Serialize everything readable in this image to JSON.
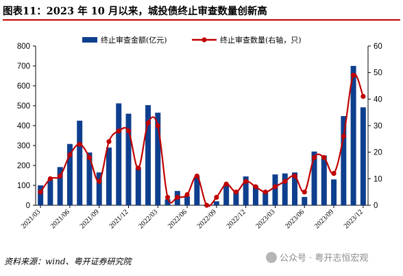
{
  "figure": {
    "title": "图表11：2023 年 10 月以来，城投债终止审查数量创新高",
    "source": "资料来源：wind、粤开证券研究院",
    "watermark": "公众号 · 粤开志恒宏观"
  },
  "colors": {
    "bar": "#0e3f8e",
    "line": "#c00000"
  },
  "chart_data": {
    "type": "bar",
    "title": "",
    "x_tick_labels": [
      "2021/03",
      "2021/06",
      "2021/09",
      "2021/12",
      "2022/03",
      "2022/06",
      "2022/09",
      "2022/12",
      "2023/03",
      "2023/06",
      "2023/09",
      "2023/12"
    ],
    "y_left_ticks": [
      "0",
      "100",
      "200",
      "300",
      "400",
      "500",
      "600",
      "700",
      "800"
    ],
    "y_right_ticks": [
      "0",
      "10",
      "20",
      "30",
      "40",
      "50",
      "60"
    ],
    "ylim_left": [
      0,
      800
    ],
    "ylim_right": [
      0,
      60
    ],
    "legend_position": "top-center",
    "grid": false,
    "categories": [
      "2021/03",
      "2021/04",
      "2021/05",
      "2021/06",
      "2021/07",
      "2021/08",
      "2021/09",
      "2021/10",
      "2021/11",
      "2021/12",
      "2022/01",
      "2022/02",
      "2022/03",
      "2022/04",
      "2022/05",
      "2022/06",
      "2022/07",
      "2022/08",
      "2022/09",
      "2022/10",
      "2022/11",
      "2022/12",
      "2023/01",
      "2023/02",
      "2023/03",
      "2023/04",
      "2023/05",
      "2023/06",
      "2023/07",
      "2023/08",
      "2023/09",
      "2023/10",
      "2023/11",
      "2023/12"
    ],
    "series": [
      {
        "name": "终止审查金额(亿元)",
        "type": "bar",
        "axis": "left",
        "values": [
          100,
          130,
          192,
          308,
          425,
          265,
          165,
          290,
          512,
          460,
          190,
          503,
          465,
          30,
          72,
          45,
          145,
          5,
          20,
          105,
          72,
          145,
          98,
          65,
          155,
          160,
          165,
          42,
          270,
          250,
          130,
          448,
          700,
          492
        ]
      },
      {
        "name": "终止审查数量(右轴，只)",
        "type": "line",
        "axis": "right",
        "values": [
          5,
          10,
          11,
          19,
          23,
          18,
          9,
          24,
          28,
          28,
          14,
          31,
          30,
          3,
          3,
          4,
          11,
          0,
          3,
          8,
          5,
          9,
          7,
          5,
          7,
          9,
          11,
          5,
          18,
          18,
          12,
          26,
          49,
          41
        ]
      }
    ]
  }
}
